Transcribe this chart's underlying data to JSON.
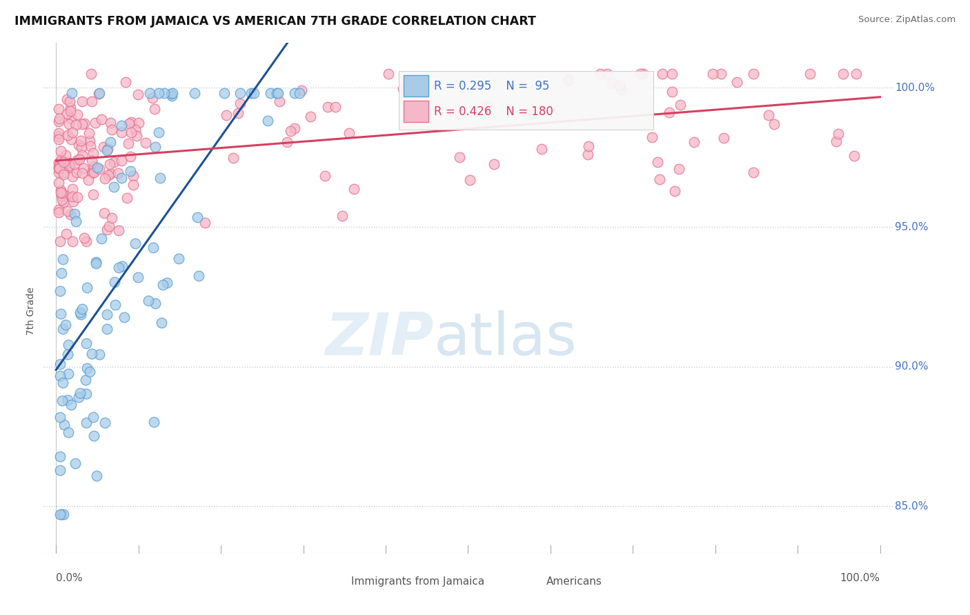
{
  "title": "IMMIGRANTS FROM JAMAICA VS AMERICAN 7TH GRADE CORRELATION CHART",
  "source": "Source: ZipAtlas.com",
  "ylabel": "7th Grade",
  "legend_blue_R": "0.295",
  "legend_blue_N": "95",
  "legend_pink_R": "0.426",
  "legend_pink_N": "180",
  "blue_color": "#a8cce8",
  "pink_color": "#f5b8c8",
  "blue_edge_color": "#5a9fd4",
  "pink_edge_color": "#e87090",
  "blue_line_color": "#1a5296",
  "pink_line_color": "#d44060",
  "background_color": "#ffffff",
  "grid_color": "#c8c8c8",
  "title_color": "#111111",
  "label_color": "#4472c4",
  "axis_color": "#555555"
}
